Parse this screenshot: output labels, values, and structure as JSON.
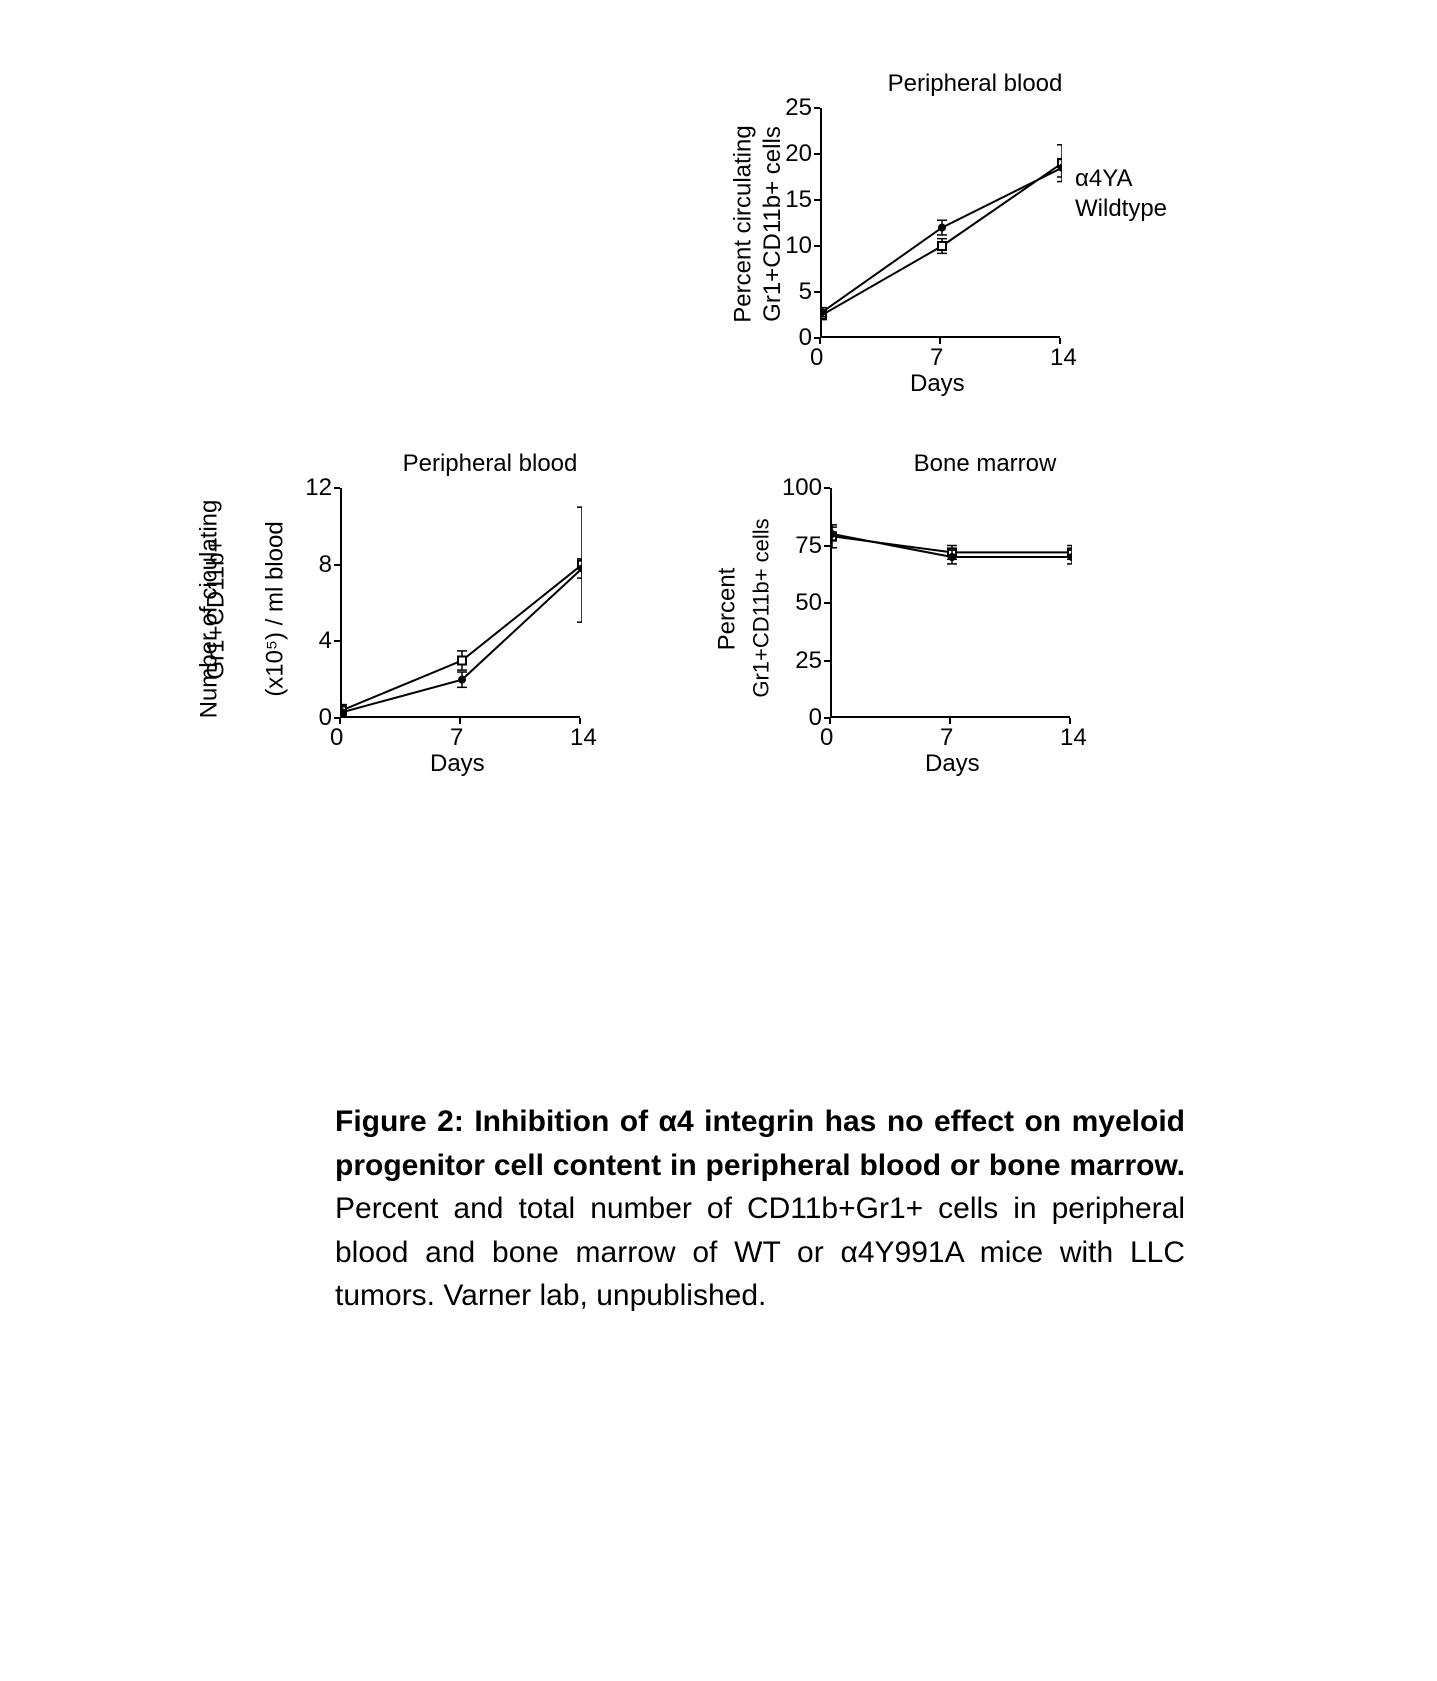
{
  "chart1": {
    "type": "line",
    "title": "Peripheral blood",
    "ylabel_line1": "Percent circulating",
    "ylabel_line2": "Gr1+CD11b+ cells",
    "xlabel": "Days",
    "xlim": [
      0,
      14
    ],
    "ylim": [
      0,
      25
    ],
    "xticks": [
      0,
      7,
      14
    ],
    "yticks": [
      0,
      5,
      10,
      15,
      20,
      25
    ],
    "series": [
      {
        "name": "α4YA",
        "label": "α4YA",
        "marker": "square-open",
        "color": "#000000",
        "x": [
          0,
          7,
          14
        ],
        "y": [
          2.5,
          10,
          19
        ],
        "err": [
          0.5,
          0.8,
          2
        ]
      },
      {
        "name": "Wildtype",
        "label": "Wildtype",
        "marker": "circle-filled",
        "color": "#000000",
        "x": [
          0,
          7,
          14
        ],
        "y": [
          2.8,
          12,
          18.5
        ],
        "err": [
          0.5,
          0.8,
          1
        ]
      }
    ],
    "title_fontsize": 24,
    "label_fontsize": 24,
    "tick_fontsize": 24,
    "line_width": 2,
    "marker_size": 8,
    "background_color": "#ffffff",
    "axis_color": "#000000"
  },
  "chart2": {
    "type": "line",
    "title": "Peripheral blood",
    "ylabel_line1": "Number of ciculating",
    "ylabel_line2": "Gr1+CD11b+",
    "ylabel_line3": "(x10⁵) / ml blood",
    "xlabel": "Days",
    "xlim": [
      0,
      14
    ],
    "ylim": [
      0,
      12
    ],
    "xticks": [
      0,
      7,
      14
    ],
    "yticks": [
      0,
      4,
      8,
      12
    ],
    "series": [
      {
        "name": "α4YA",
        "marker": "square-open",
        "color": "#000000",
        "x": [
          0,
          7,
          14
        ],
        "y": [
          0.4,
          3,
          8
        ],
        "err": [
          0.3,
          0.5,
          3
        ]
      },
      {
        "name": "Wildtype",
        "marker": "circle-filled",
        "color": "#000000",
        "x": [
          0,
          7,
          14
        ],
        "y": [
          0.3,
          2,
          7.8
        ],
        "err": [
          0.3,
          0.4,
          0.5
        ]
      }
    ],
    "title_fontsize": 24,
    "label_fontsize": 24,
    "tick_fontsize": 24,
    "line_width": 2,
    "marker_size": 8,
    "background_color": "#ffffff",
    "axis_color": "#000000"
  },
  "chart3": {
    "type": "line",
    "title": "Bone marrow",
    "ylabel_line1": "Percent",
    "ylabel_line2": "Gr1+CD11b+ cells",
    "xlabel": "Days",
    "xlim": [
      0,
      14
    ],
    "ylim": [
      0,
      100
    ],
    "xticks": [
      0,
      7,
      14
    ],
    "yticks": [
      0,
      25,
      50,
      75,
      100
    ],
    "series": [
      {
        "name": "α4YA",
        "marker": "square-open",
        "color": "#000000",
        "x": [
          0,
          7,
          14
        ],
        "y": [
          79,
          72,
          72
        ],
        "err": [
          5,
          3,
          3
        ]
      },
      {
        "name": "Wildtype",
        "marker": "circle-filled",
        "color": "#000000",
        "x": [
          0,
          7,
          14
        ],
        "y": [
          80,
          70,
          70
        ],
        "err": [
          3,
          3,
          3
        ]
      }
    ],
    "title_fontsize": 24,
    "label_fontsize": 24,
    "tick_fontsize": 24,
    "line_width": 2,
    "marker_size": 8,
    "background_color": "#ffffff",
    "axis_color": "#000000"
  },
  "legend": {
    "a4ya": "α4YA",
    "wildtype": "Wildtype"
  },
  "caption": {
    "title_prefix": "Figure 2: Inhibition of α4 integrin has no effect on myeloid progenitor cell content in peripheral blood or bone marrow.",
    "body": " Percent and total number of CD11b+Gr1+ cells in peripheral blood and bone marrow of WT or α4Y991A mice with LLC tumors. Varner lab, unpublished."
  }
}
